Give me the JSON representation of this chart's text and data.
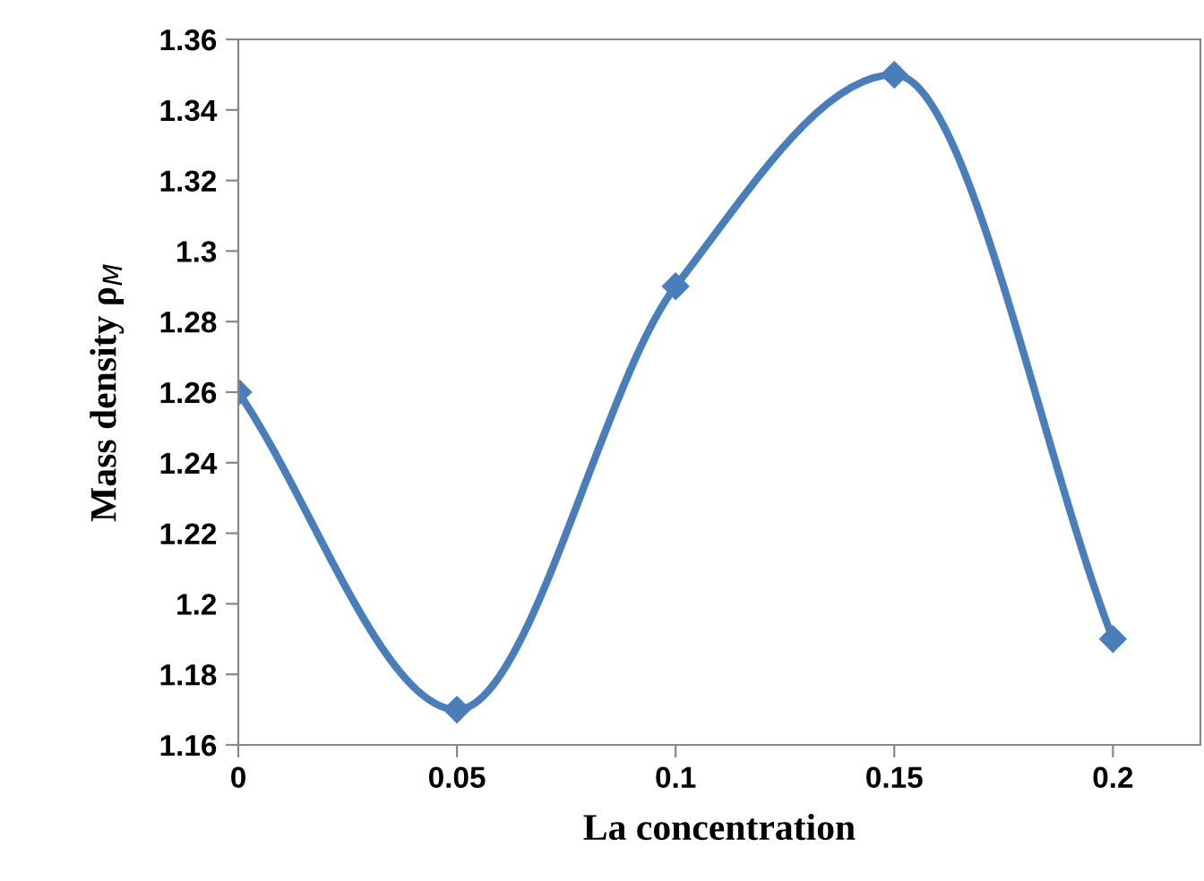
{
  "chart_data": {
    "type": "line",
    "xlabel": "La concentration",
    "ylabel": "Mass density ρ$_{M}$",
    "x": [
      0,
      0.05,
      0.1,
      0.15,
      0.2
    ],
    "series": [
      {
        "color": "#4a7ebb",
        "values": [
          1.26,
          1.17,
          1.29,
          1.35,
          1.19
        ]
      }
    ],
    "xlim": [
      0,
      0.22
    ],
    "xticks": [
      0,
      0.05,
      0.1,
      0.15,
      0.2
    ],
    "ylim": [
      1.16,
      1.36
    ],
    "yticks": [
      1.16,
      1.18,
      1.2,
      1.22,
      1.24,
      1.26,
      1.28,
      1.3,
      1.32,
      1.34,
      1.36
    ],
    "grid": false,
    "legend": false,
    "marker": "diamond",
    "line_style": "solid"
  }
}
